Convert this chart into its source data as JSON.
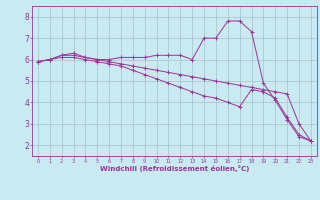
{
  "background_color": "#c8eaf0",
  "grid_color": "#a0b8c0",
  "line_color": "#993399",
  "marker": "+",
  "xlabel": "Windchill (Refroidissement éolien,°C)",
  "xlabel_color": "#993399",
  "tick_color": "#993399",
  "xlim": [
    -0.5,
    23.5
  ],
  "ylim": [
    1.5,
    8.5
  ],
  "yticks": [
    2,
    3,
    4,
    5,
    6,
    7,
    8
  ],
  "xticks": [
    0,
    1,
    2,
    3,
    4,
    5,
    6,
    7,
    8,
    9,
    10,
    11,
    12,
    13,
    14,
    15,
    16,
    17,
    18,
    19,
    20,
    21,
    22,
    23
  ],
  "series": [
    {
      "x": [
        0,
        1,
        2,
        3,
        4,
        5,
        6,
        7,
        8,
        9,
        10,
        11,
        12,
        13,
        14,
        15,
        16,
        17,
        18,
        19,
        20,
        21,
        22,
        23
      ],
      "y": [
        5.9,
        6.0,
        6.2,
        6.3,
        6.1,
        6.0,
        6.0,
        6.1,
        6.1,
        6.1,
        6.2,
        6.2,
        6.2,
        6.0,
        7.0,
        7.0,
        7.8,
        7.8,
        7.3,
        4.9,
        4.1,
        3.2,
        2.4,
        2.2
      ]
    },
    {
      "x": [
        0,
        1,
        2,
        3,
        4,
        5,
        6,
        7,
        8,
        9,
        10,
        11,
        12,
        13,
        14,
        15,
        16,
        17,
        18,
        19,
        20,
        21,
        22,
        23
      ],
      "y": [
        5.9,
        6.0,
        6.2,
        6.2,
        6.1,
        6.0,
        5.9,
        5.8,
        5.7,
        5.6,
        5.5,
        5.4,
        5.3,
        5.2,
        5.1,
        5.0,
        4.9,
        4.8,
        4.7,
        4.6,
        4.5,
        4.4,
        3.0,
        2.2
      ]
    },
    {
      "x": [
        0,
        1,
        2,
        3,
        4,
        5,
        6,
        7,
        8,
        9,
        10,
        11,
        12,
        13,
        14,
        15,
        16,
        17,
        18,
        19,
        20,
        21,
        22,
        23
      ],
      "y": [
        5.9,
        6.0,
        6.1,
        6.1,
        6.0,
        5.9,
        5.8,
        5.7,
        5.5,
        5.3,
        5.1,
        4.9,
        4.7,
        4.5,
        4.3,
        4.2,
        4.0,
        3.8,
        4.6,
        4.5,
        4.2,
        3.3,
        2.5,
        2.2
      ]
    }
  ],
  "figsize": [
    3.2,
    2.0
  ],
  "dpi": 100
}
